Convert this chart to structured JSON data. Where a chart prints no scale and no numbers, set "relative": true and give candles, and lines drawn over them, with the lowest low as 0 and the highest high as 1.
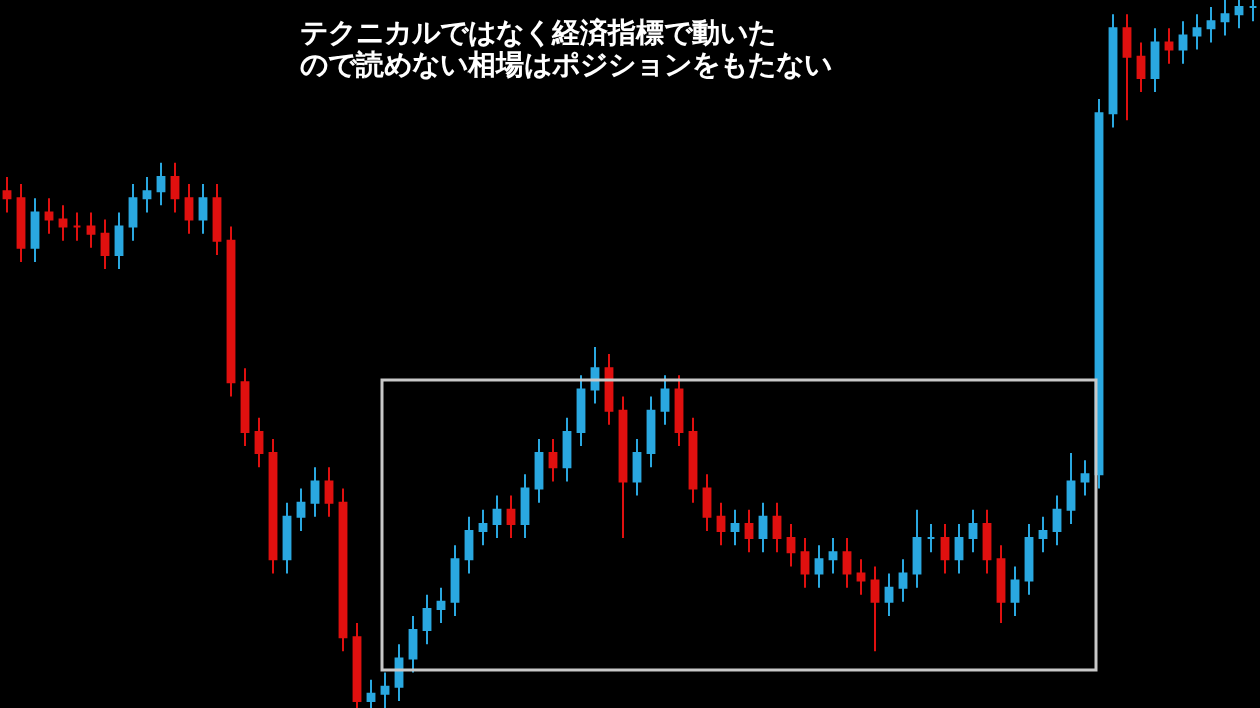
{
  "chart_data": {
    "type": "candlestick",
    "relative": true,
    "annotations": [
      "テクニカルではなく経済指標で動いた",
      "ので読めない相場はポジションをもたない"
    ],
    "colors": [
      "#e0100f",
      "#e0100f",
      "#2aa8e0",
      "#e0100f",
      "#e0100f",
      "#e0100f",
      "#e0100f",
      "#e0100f",
      "#2aa8e0",
      "#2aa8e0",
      "#2aa8e0",
      "#2aa8e0",
      "#e0100f",
      "#e0100f",
      "#2aa8e0",
      "#e0100f",
      "#e0100f",
      "#e0100f",
      "#e0100f",
      "#e0100f",
      "#2aa8e0",
      "#2aa8e0",
      "#2aa8e0",
      "#e0100f",
      "#e0100f",
      "#e0100f",
      "#2aa8e0",
      "#2aa8e0",
      "#2aa8e0",
      "#2aa8e0",
      "#2aa8e0",
      "#2aa8e0",
      "#2aa8e0",
      "#2aa8e0",
      "#2aa8e0",
      "#2aa8e0",
      "#e0100f",
      "#2aa8e0",
      "#2aa8e0",
      "#e0100f",
      "#2aa8e0",
      "#2aa8e0",
      "#2aa8e0",
      "#e0100f",
      "#e0100f",
      "#2aa8e0",
      "#2aa8e0",
      "#2aa8e0",
      "#e0100f",
      "#e0100f",
      "#e0100f",
      "#e0100f",
      "#2aa8e0",
      "#e0100f",
      "#2aa8e0",
      "#e0100f",
      "#e0100f",
      "#e0100f",
      "#2aa8e0",
      "#2aa8e0",
      "#e0100f",
      "#e0100f",
      "#e0100f",
      "#2aa8e0",
      "#2aa8e0",
      "#2aa8e0",
      "#2aa8e0",
      "#e0100f",
      "#2aa8e0",
      "#2aa8e0",
      "#e0100f",
      "#e0100f",
      "#2aa8e0",
      "#2aa8e0",
      "#2aa8e0",
      "#2aa8e0",
      "#2aa8e0",
      "#2aa8e0",
      "#2aa8e0",
      "#2aa8e0",
      "#e0100f",
      "#e0100f",
      "#2aa8e0",
      "#e0100f",
      "#2aa8e0",
      "#2aa8e0",
      "#2aa8e0",
      "#2aa8e0",
      "#2aa8e0",
      "#2aa8e0"
    ],
    "categories": [
      null,
      null,
      null,
      null,
      null,
      null,
      null,
      null,
      null,
      null,
      null,
      null,
      null,
      null,
      null,
      null,
      null,
      null,
      null,
      null,
      null,
      null,
      null,
      null,
      null,
      null,
      null,
      null,
      null,
      null,
      null,
      null,
      null,
      null,
      null,
      null,
      null,
      null,
      null,
      null,
      null,
      null,
      null,
      null,
      null,
      null,
      null,
      null,
      null,
      null,
      null,
      null,
      null,
      null,
      null,
      null,
      null,
      null,
      null,
      null,
      null,
      null,
      null,
      null,
      null,
      null,
      null,
      null,
      null,
      null,
      null,
      null,
      null,
      null,
      null,
      null,
      null,
      null,
      null,
      null,
      null,
      null,
      null,
      null,
      null,
      null,
      null,
      null,
      null,
      null
    ],
    "ohlc": [
      [
        0.73,
        0.75,
        0.7,
        0.72
      ],
      [
        0.72,
        0.74,
        0.63,
        0.65
      ],
      [
        0.65,
        0.72,
        0.63,
        0.7
      ],
      [
        0.7,
        0.72,
        0.67,
        0.69
      ],
      [
        0.69,
        0.71,
        0.66,
        0.68
      ],
      [
        0.68,
        0.7,
        0.66,
        0.68
      ],
      [
        0.68,
        0.7,
        0.65,
        0.67
      ],
      [
        0.67,
        0.69,
        0.62,
        0.64
      ],
      [
        0.64,
        0.7,
        0.62,
        0.68
      ],
      [
        0.68,
        0.74,
        0.66,
        0.72
      ],
      [
        0.72,
        0.75,
        0.7,
        0.73
      ],
      [
        0.73,
        0.77,
        0.71,
        0.75
      ],
      [
        0.75,
        0.77,
        0.7,
        0.72
      ],
      [
        0.72,
        0.74,
        0.67,
        0.69
      ],
      [
        0.69,
        0.74,
        0.67,
        0.72
      ],
      [
        0.72,
        0.74,
        0.64,
        0.66
      ],
      [
        0.66,
        0.68,
        0.44,
        0.46
      ],
      [
        0.46,
        0.48,
        0.37,
        0.39
      ],
      [
        0.39,
        0.41,
        0.34,
        0.36
      ],
      [
        0.36,
        0.38,
        0.19,
        0.21
      ],
      [
        0.21,
        0.29,
        0.19,
        0.27
      ],
      [
        0.27,
        0.31,
        0.25,
        0.29
      ],
      [
        0.29,
        0.34,
        0.27,
        0.32
      ],
      [
        0.32,
        0.34,
        0.27,
        0.29
      ],
      [
        0.29,
        0.31,
        0.08,
        0.1
      ],
      [
        0.1,
        0.12,
        0,
        0.01
      ],
      [
        0.01,
        0.04,
        0,
        0.02
      ],
      [
        0.02,
        0.05,
        0,
        0.03
      ],
      [
        0.03,
        0.09,
        0.01,
        0.07
      ],
      [
        0.07,
        0.13,
        0.05,
        0.11
      ],
      [
        0.11,
        0.16,
        0.09,
        0.14
      ],
      [
        0.14,
        0.17,
        0.12,
        0.15
      ],
      [
        0.15,
        0.23,
        0.13,
        0.21
      ],
      [
        0.21,
        0.27,
        0.19,
        0.25
      ],
      [
        0.25,
        0.28,
        0.23,
        0.26
      ],
      [
        0.26,
        0.3,
        0.24,
        0.28
      ],
      [
        0.28,
        0.3,
        0.24,
        0.26
      ],
      [
        0.26,
        0.33,
        0.24,
        0.31
      ],
      [
        0.31,
        0.38,
        0.29,
        0.36
      ],
      [
        0.36,
        0.38,
        0.32,
        0.34
      ],
      [
        0.34,
        0.41,
        0.32,
        0.39
      ],
      [
        0.39,
        0.47,
        0.37,
        0.45
      ],
      [
        0.45,
        0.51,
        0.43,
        0.48
      ],
      [
        0.48,
        0.5,
        0.4,
        0.42
      ],
      [
        0.42,
        0.44,
        0.24,
        0.32
      ],
      [
        0.32,
        0.38,
        0.3,
        0.36
      ],
      [
        0.36,
        0.44,
        0.34,
        0.42
      ],
      [
        0.42,
        0.47,
        0.4,
        0.45
      ],
      [
        0.45,
        0.47,
        0.37,
        0.39
      ],
      [
        0.39,
        0.41,
        0.29,
        0.31
      ],
      [
        0.31,
        0.33,
        0.25,
        0.27
      ],
      [
        0.27,
        0.29,
        0.23,
        0.25
      ],
      [
        0.25,
        0.28,
        0.23,
        0.26
      ],
      [
        0.26,
        0.28,
        0.22,
        0.24
      ],
      [
        0.24,
        0.29,
        0.22,
        0.27
      ],
      [
        0.27,
        0.29,
        0.22,
        0.24
      ],
      [
        0.24,
        0.26,
        0.2,
        0.22
      ],
      [
        0.22,
        0.24,
        0.17,
        0.19
      ],
      [
        0.19,
        0.23,
        0.17,
        0.21
      ],
      [
        0.21,
        0.24,
        0.19,
        0.22
      ],
      [
        0.22,
        0.24,
        0.17,
        0.19
      ],
      [
        0.19,
        0.21,
        0.16,
        0.18
      ],
      [
        0.18,
        0.2,
        0.08,
        0.15
      ],
      [
        0.15,
        0.19,
        0.13,
        0.17
      ],
      [
        0.17,
        0.21,
        0.15,
        0.19
      ],
      [
        0.19,
        0.28,
        0.17,
        0.24
      ],
      [
        0.24,
        0.26,
        0.22,
        0.24
      ],
      [
        0.24,
        0.26,
        0.19,
        0.21
      ],
      [
        0.21,
        0.26,
        0.19,
        0.24
      ],
      [
        0.24,
        0.28,
        0.22,
        0.26
      ],
      [
        0.26,
        0.28,
        0.19,
        0.21
      ],
      [
        0.21,
        0.23,
        0.12,
        0.15
      ],
      [
        0.15,
        0.2,
        0.13,
        0.18
      ],
      [
        0.18,
        0.26,
        0.16,
        0.24
      ],
      [
        0.24,
        0.27,
        0.22,
        0.25
      ],
      [
        0.25,
        0.3,
        0.23,
        0.28
      ],
      [
        0.28,
        0.36,
        0.26,
        0.32
      ],
      [
        0.32,
        0.35,
        0.3,
        0.33
      ],
      [
        0.33,
        0.86,
        0.31,
        0.84
      ],
      [
        0.84,
        0.98,
        0.82,
        0.96
      ],
      [
        0.96,
        0.98,
        0.83,
        0.92
      ],
      [
        0.92,
        0.94,
        0.87,
        0.89
      ],
      [
        0.89,
        0.96,
        0.87,
        0.94
      ],
      [
        0.94,
        0.96,
        0.91,
        0.93
      ],
      [
        0.93,
        0.97,
        0.91,
        0.95
      ],
      [
        0.95,
        0.98,
        0.93,
        0.96
      ],
      [
        0.96,
        0.99,
        0.94,
        0.97
      ],
      [
        0.97,
        1,
        0.95,
        0.98
      ],
      [
        0.98,
        1,
        0.96,
        0.99
      ],
      [
        0.99,
        1,
        0.97,
        0.99
      ]
    ]
  }
}
